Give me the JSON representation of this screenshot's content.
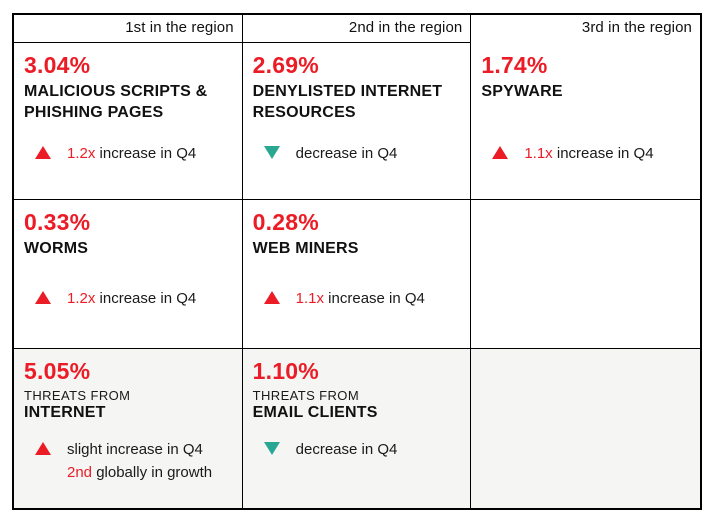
{
  "colors": {
    "accent_red": "#ec1c26",
    "decrease_teal": "#29a793",
    "bottom_row_bg": "#f5f5f4",
    "border": "#000000",
    "text": "#1a1a1a"
  },
  "headers": [
    "1st in the region",
    "2nd in the region",
    "3rd in the region"
  ],
  "cells": {
    "r1c1": {
      "pct": "3.04%",
      "title": "MALICIOUS SCRIPTS & PHISHING PAGES",
      "trend_icon": "up-triangle",
      "trend_highlight": "1.2x",
      "trend_text": " increase in Q4"
    },
    "r1c2": {
      "pct": "2.69%",
      "title": "DENYLISTED INTERNET RESOURCES",
      "trend_icon": "down-triangle",
      "trend_highlight": "",
      "trend_text": "decrease in Q4"
    },
    "r1c3": {
      "pct": "1.74%",
      "title": "SPYWARE",
      "trend_icon": "up-triangle",
      "trend_highlight": "1.1x",
      "trend_text": " increase in Q4"
    },
    "r2c1": {
      "pct": "0.33%",
      "title": "WORMS",
      "trend_icon": "up-triangle",
      "trend_highlight": "1.2x",
      "trend_text": " increase in Q4"
    },
    "r2c2": {
      "pct": "0.28%",
      "title": "WEB MINERS",
      "trend_icon": "up-triangle",
      "trend_highlight": "1.1x",
      "trend_text": " increase in Q4"
    },
    "r3c1": {
      "pct": "5.05%",
      "pre_title": "THREATS FROM",
      "title": "INTERNET",
      "trend_icon": "up-triangle",
      "trend_line1": "slight increase in Q4",
      "trend_line2_highlight": "2nd",
      "trend_line2_text": " globally in growth"
    },
    "r3c2": {
      "pct": "1.10%",
      "pre_title": "THREATS FROM",
      "title": "EMAIL CLIENTS",
      "trend_icon": "down-triangle",
      "trend_highlight": "",
      "trend_text": "decrease in Q4"
    }
  },
  "chart_data": {
    "type": "table",
    "columns": [
      "1st in the region",
      "2nd in the region",
      "3rd in the region"
    ],
    "rows": [
      [
        {
          "value_pct": 3.04,
          "category": "Malicious scripts & phishing pages",
          "change": "1.2x increase in Q4",
          "direction": "up"
        },
        {
          "value_pct": 2.69,
          "category": "Denylisted internet resources",
          "change": "decrease in Q4",
          "direction": "down"
        },
        {
          "value_pct": 1.74,
          "category": "Spyware",
          "change": "1.1x increase in Q4",
          "direction": "up"
        }
      ],
      [
        {
          "value_pct": 0.33,
          "category": "Worms",
          "change": "1.2x increase in Q4",
          "direction": "up"
        },
        {
          "value_pct": 0.28,
          "category": "Web miners",
          "change": "1.1x increase in Q4",
          "direction": "up"
        },
        null
      ],
      [
        {
          "value_pct": 5.05,
          "category": "Threats from internet",
          "change": "slight increase in Q4; 2nd globally in growth",
          "direction": "up"
        },
        {
          "value_pct": 1.1,
          "category": "Threats from email clients",
          "change": "decrease in Q4",
          "direction": "down"
        },
        null
      ]
    ],
    "layout": {
      "grid": "3x3 bordered table with header row",
      "bottom_row_shaded": true
    }
  }
}
